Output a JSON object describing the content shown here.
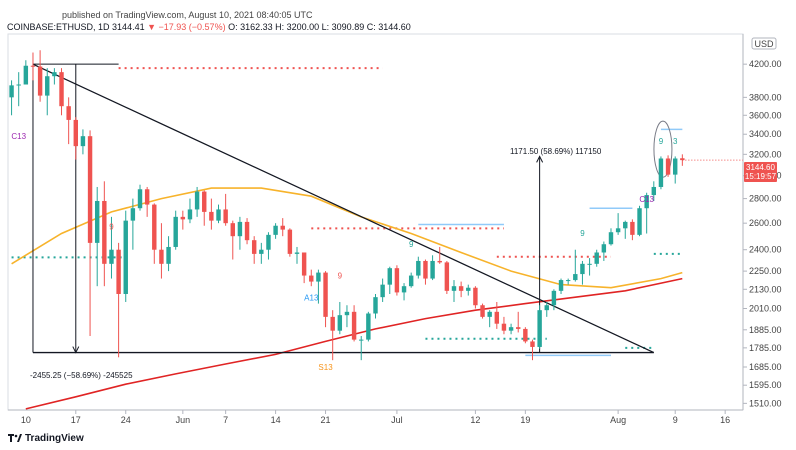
{
  "header": {
    "published": "published on TradingView.com, August 10, 2021 08:40:05 UTC",
    "symbol": "COINBASE:ETHUSD, 1D",
    "ohlc_open": "3144.41",
    "ohlc_change": "▼ −17.93 (−0.57%)",
    "ohlc_detail": "O: 3162.33  H: 3200.00  L: 3090.89  C: 3144.60"
  },
  "footer": {
    "brand": "TradingView"
  },
  "currency": "USD",
  "price_box": {
    "price": "3144.60",
    "timer": "15:19:57"
  },
  "colors": {
    "up": "#26a69a",
    "down": "#ef5350",
    "ma_short": "#f7b32b",
    "ma_long": "#e02424",
    "trend": "#131722",
    "tdsequential": "#26a69a"
  },
  "annotations": {
    "top_measure": "1171.50 (58.69%) 117150",
    "bottom_measure": "-2455.25 (−58.69%) -245525",
    "labels": [
      "C13",
      "9",
      "A13",
      "9",
      "S13",
      "9",
      "9",
      "C13",
      "9",
      "3"
    ]
  },
  "chart_data": {
    "type": "candlestick",
    "symbol": "COINBASE:ETHUSD",
    "interval": "1D",
    "y_scale": "log",
    "ylim": [
      1480,
      4600
    ],
    "yticks": [
      4200,
      3800,
      3600,
      3400,
      3200,
      3000,
      2800,
      2600,
      2400,
      2250,
      2130,
      2010,
      1885,
      1785,
      1685,
      1595,
      1510
    ],
    "xticks": [
      "17",
      "24",
      "Jun",
      "7",
      "14",
      "21",
      "Jul",
      "12",
      "19",
      "Aug",
      "9",
      "16"
    ],
    "xlim": [
      "2021-05-08",
      "2021-08-18"
    ],
    "candles": [
      {
        "d": "2021-05-08",
        "o": 3800,
        "h": 4000,
        "l": 3600,
        "c": 3940
      },
      {
        "d": "2021-05-09",
        "o": 3940,
        "h": 4100,
        "l": 3700,
        "c": 3950
      },
      {
        "d": "2021-05-10",
        "o": 3950,
        "h": 4250,
        "l": 3950,
        "c": 4180
      },
      {
        "d": "2021-05-11",
        "o": 4180,
        "h": 4350,
        "l": 4000,
        "c": 4170
      },
      {
        "d": "2021-05-12",
        "o": 4170,
        "h": 4380,
        "l": 3750,
        "c": 3820
      },
      {
        "d": "2021-05-13",
        "o": 3820,
        "h": 4150,
        "l": 3600,
        "c": 4050
      },
      {
        "d": "2021-05-14",
        "o": 4050,
        "h": 4150,
        "l": 3950,
        "c": 4100
      },
      {
        "d": "2021-05-15",
        "o": 4100,
        "h": 4150,
        "l": 3600,
        "c": 3700
      },
      {
        "d": "2021-05-16",
        "o": 3700,
        "h": 3800,
        "l": 3300,
        "c": 3550
      },
      {
        "d": "2021-05-17",
        "o": 3550,
        "h": 3580,
        "l": 3150,
        "c": 3280
      },
      {
        "d": "2021-05-18",
        "o": 3280,
        "h": 3450,
        "l": 3200,
        "c": 3380
      },
      {
        "d": "2021-05-19",
        "o": 3380,
        "h": 3440,
        "l": 1850,
        "c": 2450
      },
      {
        "d": "2021-05-20",
        "o": 2450,
        "h": 2900,
        "l": 2150,
        "c": 2780
      },
      {
        "d": "2021-05-21",
        "o": 2780,
        "h": 2950,
        "l": 2150,
        "c": 2300
      },
      {
        "d": "2021-05-22",
        "o": 2300,
        "h": 2650,
        "l": 2200,
        "c": 2400
      },
      {
        "d": "2021-05-23",
        "o": 2400,
        "h": 2450,
        "l": 1735,
        "c": 2100
      },
      {
        "d": "2021-05-24",
        "o": 2100,
        "h": 2700,
        "l": 2050,
        "c": 2620
      },
      {
        "d": "2021-05-25",
        "o": 2620,
        "h": 2800,
        "l": 2400,
        "c": 2720
      },
      {
        "d": "2021-05-26",
        "o": 2720,
        "h": 2920,
        "l": 2700,
        "c": 2880
      },
      {
        "d": "2021-05-27",
        "o": 2880,
        "h": 2900,
        "l": 2650,
        "c": 2750
      },
      {
        "d": "2021-05-28",
        "o": 2750,
        "h": 2760,
        "l": 2300,
        "c": 2400
      },
      {
        "d": "2021-05-29",
        "o": 2400,
        "h": 2600,
        "l": 2200,
        "c": 2300
      },
      {
        "d": "2021-05-30",
        "o": 2300,
        "h": 2500,
        "l": 2250,
        "c": 2420
      },
      {
        "d": "2021-05-31",
        "o": 2420,
        "h": 2700,
        "l": 2400,
        "c": 2650
      },
      {
        "d": "2021-06-01",
        "o": 2650,
        "h": 2700,
        "l": 2550,
        "c": 2630
      },
      {
        "d": "2021-06-02",
        "o": 2630,
        "h": 2800,
        "l": 2600,
        "c": 2710
      },
      {
        "d": "2021-06-03",
        "o": 2710,
        "h": 2900,
        "l": 2650,
        "c": 2860
      },
      {
        "d": "2021-06-04",
        "o": 2860,
        "h": 2870,
        "l": 2580,
        "c": 2690
      },
      {
        "d": "2021-06-05",
        "o": 2690,
        "h": 2800,
        "l": 2550,
        "c": 2620
      },
      {
        "d": "2021-06-06",
        "o": 2620,
        "h": 2750,
        "l": 2600,
        "c": 2710
      },
      {
        "d": "2021-06-07",
        "o": 2710,
        "h": 2840,
        "l": 2580,
        "c": 2600
      },
      {
        "d": "2021-06-08",
        "o": 2600,
        "h": 2620,
        "l": 2330,
        "c": 2500
      },
      {
        "d": "2021-06-09",
        "o": 2500,
        "h": 2650,
        "l": 2400,
        "c": 2610
      },
      {
        "d": "2021-06-10",
        "o": 2610,
        "h": 2640,
        "l": 2440,
        "c": 2470
      },
      {
        "d": "2021-06-11",
        "o": 2470,
        "h": 2500,
        "l": 2300,
        "c": 2370
      },
      {
        "d": "2021-06-12",
        "o": 2370,
        "h": 2450,
        "l": 2300,
        "c": 2400
      },
      {
        "d": "2021-06-13",
        "o": 2400,
        "h": 2530,
        "l": 2330,
        "c": 2510
      },
      {
        "d": "2021-06-14",
        "o": 2510,
        "h": 2600,
        "l": 2480,
        "c": 2580
      },
      {
        "d": "2021-06-15",
        "o": 2580,
        "h": 2640,
        "l": 2500,
        "c": 2550
      },
      {
        "d": "2021-06-16",
        "o": 2550,
        "h": 2560,
        "l": 2350,
        "c": 2370
      },
      {
        "d": "2021-06-17",
        "o": 2370,
        "h": 2420,
        "l": 2300,
        "c": 2380
      },
      {
        "d": "2021-06-18",
        "o": 2380,
        "h": 2380,
        "l": 2170,
        "c": 2220
      },
      {
        "d": "2021-06-19",
        "o": 2220,
        "h": 2260,
        "l": 2150,
        "c": 2180
      },
      {
        "d": "2021-06-20",
        "o": 2180,
        "h": 2260,
        "l": 2040,
        "c": 2240
      },
      {
        "d": "2021-06-21",
        "o": 2240,
        "h": 2250,
        "l": 1900,
        "c": 1960
      },
      {
        "d": "2021-06-22",
        "o": 1960,
        "h": 2000,
        "l": 1720,
        "c": 1880
      },
      {
        "d": "2021-06-23",
        "o": 1880,
        "h": 2050,
        "l": 1860,
        "c": 1970
      },
      {
        "d": "2021-06-24",
        "o": 1970,
        "h": 2030,
        "l": 1900,
        "c": 1990
      },
      {
        "d": "2021-06-25",
        "o": 1990,
        "h": 2030,
        "l": 1820,
        "c": 1830
      },
      {
        "d": "2021-06-26",
        "o": 1830,
        "h": 1850,
        "l": 1720,
        "c": 1830
      },
      {
        "d": "2021-06-27",
        "o": 1830,
        "h": 1990,
        "l": 1820,
        "c": 1980
      },
      {
        "d": "2021-06-28",
        "o": 1980,
        "h": 2100,
        "l": 1950,
        "c": 2080
      },
      {
        "d": "2021-06-29",
        "o": 2080,
        "h": 2200,
        "l": 2050,
        "c": 2160
      },
      {
        "d": "2021-06-30",
        "o": 2160,
        "h": 2280,
        "l": 2100,
        "c": 2270
      },
      {
        "d": "2021-07-01",
        "o": 2270,
        "h": 2290,
        "l": 2090,
        "c": 2110
      },
      {
        "d": "2021-07-02",
        "o": 2110,
        "h": 2170,
        "l": 2060,
        "c": 2150
      },
      {
        "d": "2021-07-03",
        "o": 2150,
        "h": 2240,
        "l": 2140,
        "c": 2220
      },
      {
        "d": "2021-07-04",
        "o": 2220,
        "h": 2350,
        "l": 2200,
        "c": 2320
      },
      {
        "d": "2021-07-05",
        "o": 2320,
        "h": 2330,
        "l": 2160,
        "c": 2200
      },
      {
        "d": "2021-07-06",
        "o": 2200,
        "h": 2360,
        "l": 2190,
        "c": 2320
      },
      {
        "d": "2021-07-07",
        "o": 2320,
        "h": 2420,
        "l": 2300,
        "c": 2310
      },
      {
        "d": "2021-07-08",
        "o": 2310,
        "h": 2320,
        "l": 2100,
        "c": 2120
      },
      {
        "d": "2021-07-09",
        "o": 2120,
        "h": 2190,
        "l": 2050,
        "c": 2150
      },
      {
        "d": "2021-07-10",
        "o": 2150,
        "h": 2180,
        "l": 2080,
        "c": 2120
      },
      {
        "d": "2021-07-11",
        "o": 2120,
        "h": 2160,
        "l": 2090,
        "c": 2140
      },
      {
        "d": "2021-07-12",
        "o": 2140,
        "h": 2150,
        "l": 2010,
        "c": 2030
      },
      {
        "d": "2021-07-13",
        "o": 2030,
        "h": 2040,
        "l": 1950,
        "c": 1960
      },
      {
        "d": "2021-07-14",
        "o": 1960,
        "h": 2000,
        "l": 1900,
        "c": 1990
      },
      {
        "d": "2021-07-15",
        "o": 1990,
        "h": 2050,
        "l": 1890,
        "c": 1920
      },
      {
        "d": "2021-07-16",
        "o": 1920,
        "h": 1960,
        "l": 1860,
        "c": 1880
      },
      {
        "d": "2021-07-17",
        "o": 1880,
        "h": 1920,
        "l": 1860,
        "c": 1900
      },
      {
        "d": "2021-07-18",
        "o": 1900,
        "h": 1990,
        "l": 1870,
        "c": 1890
      },
      {
        "d": "2021-07-19",
        "o": 1890,
        "h": 1900,
        "l": 1810,
        "c": 1820
      },
      {
        "d": "2021-07-20",
        "o": 1820,
        "h": 1830,
        "l": 1720,
        "c": 1790
      },
      {
        "d": "2021-07-21",
        "o": 1790,
        "h": 2030,
        "l": 1780,
        "c": 2000
      },
      {
        "d": "2021-07-22",
        "o": 2000,
        "h": 2050,
        "l": 1960,
        "c": 2030
      },
      {
        "d": "2021-07-23",
        "o": 2030,
        "h": 2130,
        "l": 2000,
        "c": 2120
      },
      {
        "d": "2021-07-24",
        "o": 2120,
        "h": 2200,
        "l": 2100,
        "c": 2190
      },
      {
        "d": "2021-07-25",
        "o": 2190,
        "h": 2200,
        "l": 2160,
        "c": 2190
      },
      {
        "d": "2021-07-26",
        "o": 2190,
        "h": 2400,
        "l": 2180,
        "c": 2230
      },
      {
        "d": "2021-07-27",
        "o": 2230,
        "h": 2320,
        "l": 2160,
        "c": 2300
      },
      {
        "d": "2021-07-28",
        "o": 2300,
        "h": 2340,
        "l": 2220,
        "c": 2300
      },
      {
        "d": "2021-07-29",
        "o": 2300,
        "h": 2400,
        "l": 2280,
        "c": 2380
      },
      {
        "d": "2021-07-30",
        "o": 2380,
        "h": 2460,
        "l": 2320,
        "c": 2440
      },
      {
        "d": "2021-07-31",
        "o": 2440,
        "h": 2560,
        "l": 2430,
        "c": 2530
      },
      {
        "d": "2021-08-01",
        "o": 2530,
        "h": 2680,
        "l": 2510,
        "c": 2560
      },
      {
        "d": "2021-08-02",
        "o": 2560,
        "h": 2620,
        "l": 2480,
        "c": 2610
      },
      {
        "d": "2021-08-03",
        "o": 2610,
        "h": 2630,
        "l": 2470,
        "c": 2510
      },
      {
        "d": "2021-08-04",
        "o": 2510,
        "h": 2740,
        "l": 2500,
        "c": 2720
      },
      {
        "d": "2021-08-05",
        "o": 2720,
        "h": 2850,
        "l": 2520,
        "c": 2830
      },
      {
        "d": "2021-08-06",
        "o": 2830,
        "h": 2950,
        "l": 2780,
        "c": 2900
      },
      {
        "d": "2021-08-07",
        "o": 2900,
        "h": 3180,
        "l": 2880,
        "c": 3160
      },
      {
        "d": "2021-08-08",
        "o": 3160,
        "h": 3190,
        "l": 2990,
        "c": 3010
      },
      {
        "d": "2021-08-09",
        "o": 3010,
        "h": 3180,
        "l": 2930,
        "c": 3160
      },
      {
        "d": "2021-08-10",
        "o": 3162.33,
        "h": 3200,
        "l": 3090.89,
        "c": 3144.6
      }
    ],
    "ma_short": [
      {
        "d": "2021-05-08",
        "v": 2300
      },
      {
        "d": "2021-05-15",
        "v": 2520
      },
      {
        "d": "2021-05-22",
        "v": 2690
      },
      {
        "d": "2021-05-29",
        "v": 2800
      },
      {
        "d": "2021-06-05",
        "v": 2890
      },
      {
        "d": "2021-06-12",
        "v": 2890
      },
      {
        "d": "2021-06-19",
        "v": 2820
      },
      {
        "d": "2021-06-26",
        "v": 2650
      },
      {
        "d": "2021-07-03",
        "v": 2520
      },
      {
        "d": "2021-07-10",
        "v": 2380
      },
      {
        "d": "2021-07-17",
        "v": 2250
      },
      {
        "d": "2021-07-24",
        "v": 2160
      },
      {
        "d": "2021-07-31",
        "v": 2140
      },
      {
        "d": "2021-08-07",
        "v": 2200
      },
      {
        "d": "2021-08-10",
        "v": 2240
      }
    ],
    "ma_long": [
      {
        "d": "2021-05-10",
        "v": 1485
      },
      {
        "d": "2021-05-17",
        "v": 1540
      },
      {
        "d": "2021-05-24",
        "v": 1600
      },
      {
        "d": "2021-05-31",
        "v": 1650
      },
      {
        "d": "2021-06-07",
        "v": 1700
      },
      {
        "d": "2021-06-14",
        "v": 1750
      },
      {
        "d": "2021-06-21",
        "v": 1820
      },
      {
        "d": "2021-06-28",
        "v": 1890
      },
      {
        "d": "2021-07-05",
        "v": 1950
      },
      {
        "d": "2021-07-12",
        "v": 2000
      },
      {
        "d": "2021-07-19",
        "v": 2040
      },
      {
        "d": "2021-07-26",
        "v": 2080
      },
      {
        "d": "2021-08-02",
        "v": 2120
      },
      {
        "d": "2021-08-10",
        "v": 2200
      }
    ]
  }
}
